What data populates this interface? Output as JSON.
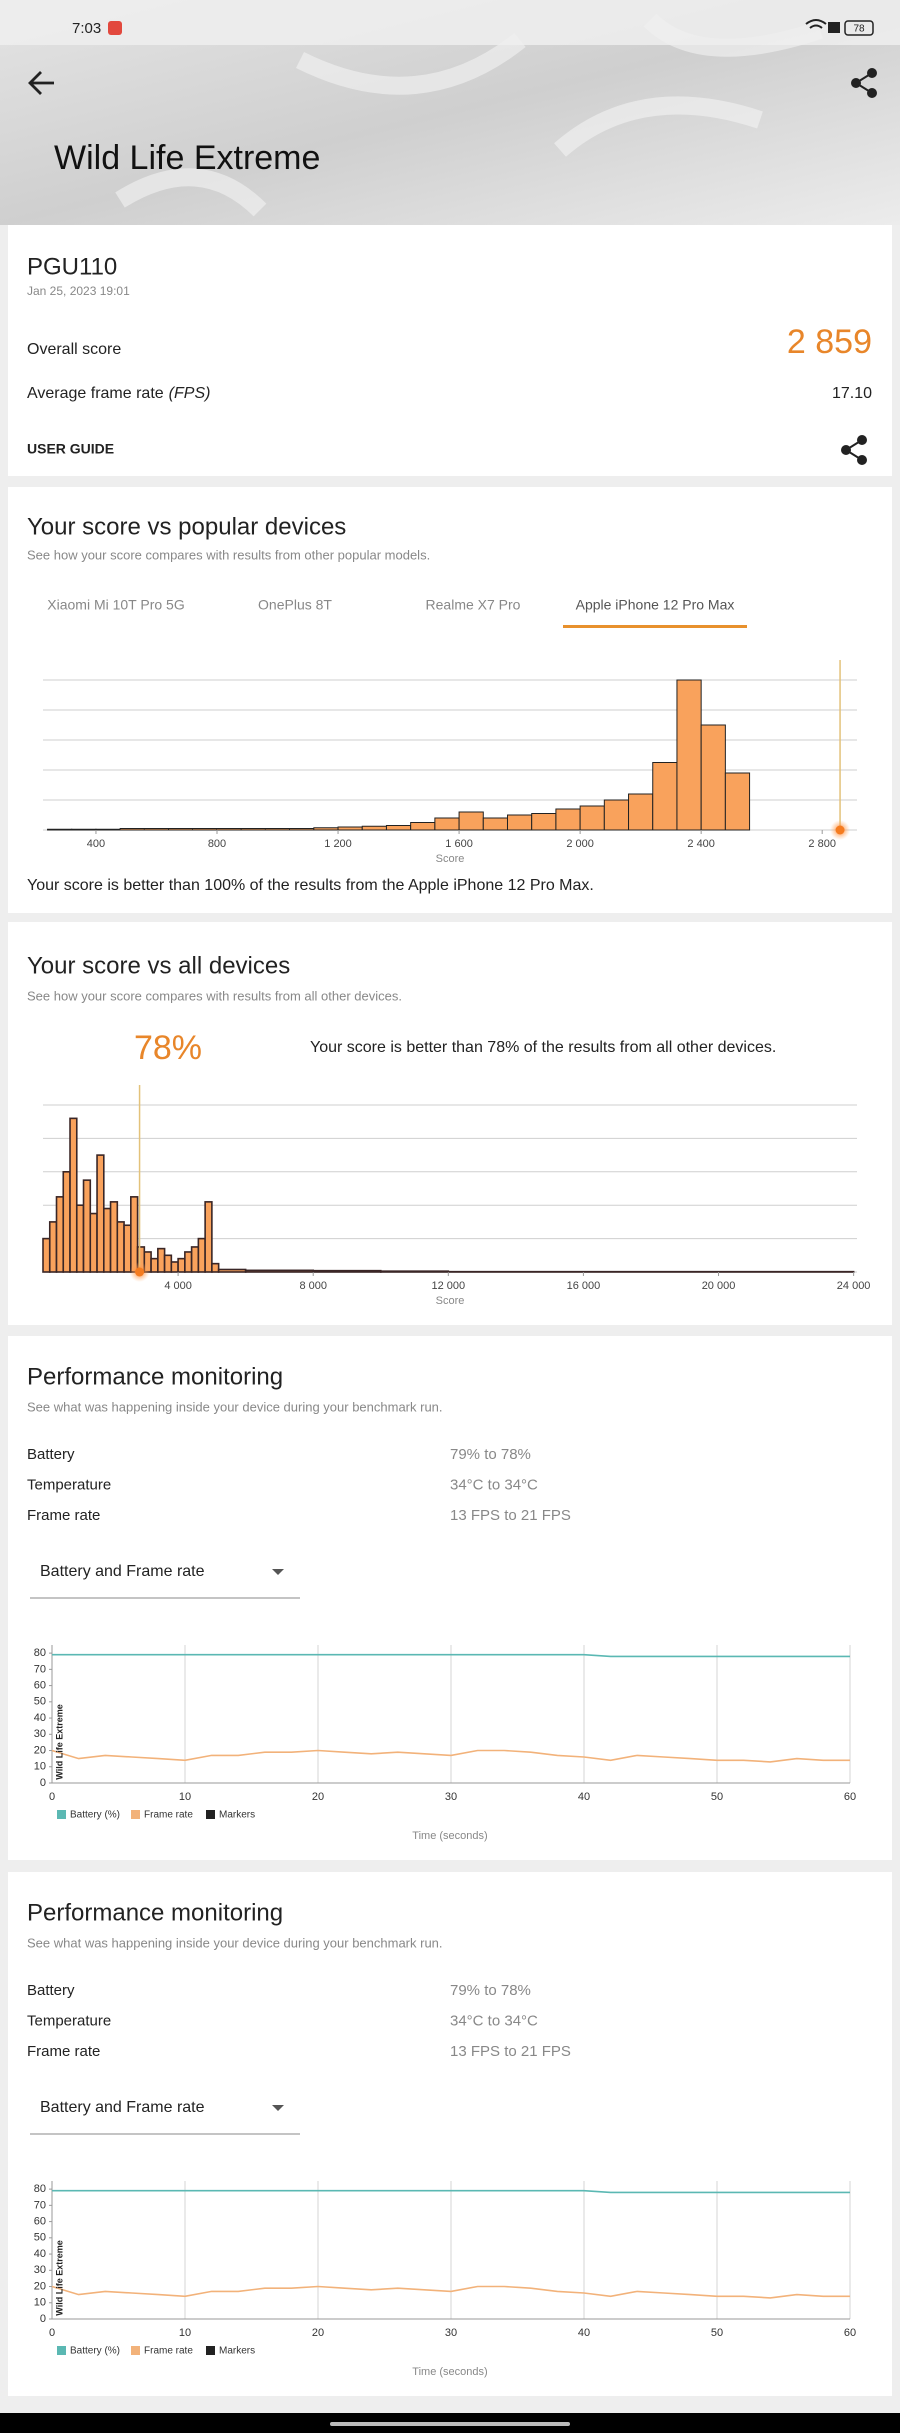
{
  "status_bar": {
    "time": "7:03",
    "battery": "78"
  },
  "header": {
    "title": "Wild Life Extreme"
  },
  "result": {
    "device": "PGU110",
    "date": "Jan 25, 2023 19:01",
    "overall_label": "Overall score",
    "overall_value": "2 859",
    "fps_label": "Average frame rate",
    "fps_unit": "(FPS)",
    "fps_value": "17.10",
    "user_guide": "USER GUIDE"
  },
  "popular": {
    "title": "Your score vs popular devices",
    "subtitle": "See how your score compares with results from other popular models.",
    "tabs": [
      "Xiaomi Mi 10T Pro 5G",
      "OnePlus 8T",
      "Realme X7 Pro",
      "Apple iPhone 12 Pro Max"
    ],
    "active_tab": 3,
    "chart": {
      "type": "histogram",
      "x_label": "Score",
      "xlim": [
        225,
        2915
      ],
      "xticks": [
        400,
        800,
        {
          "value": 1200,
          "label": "1 200"
        },
        {
          "value": 1600,
          "label": "1 600"
        },
        {
          "value": 2000,
          "label": "2 000"
        },
        {
          "value": 2400,
          "label": "2 400"
        },
        {
          "value": 2800,
          "label": "2 800"
        }
      ],
      "ylim": [
        0,
        100
      ],
      "bins": [
        240,
        320,
        400,
        480,
        560,
        640,
        720,
        800,
        880,
        960,
        1040,
        1120,
        1200,
        1280,
        1360,
        1440,
        1520,
        1600,
        1680,
        1760,
        1840,
        1920,
        2000,
        2080,
        2160,
        2240,
        2320,
        2400,
        2480,
        2560
      ],
      "counts": [
        0.5,
        0.5,
        0.5,
        1,
        1,
        1,
        1,
        1,
        1,
        1,
        1,
        1.5,
        2,
        2.5,
        3,
        5,
        8,
        12,
        8,
        10,
        11,
        14,
        16,
        20,
        24,
        45,
        100,
        70,
        38
      ],
      "color": "#f9a25c",
      "marker": 2859
    },
    "summary": "Your score is better than 100% of the results from the Apple iPhone 12 Pro Max."
  },
  "all": {
    "title": "Your score vs all devices",
    "subtitle": "See how your score compares with results from all other devices.",
    "percentile": "78%",
    "summary": "Your score is better than 78% of the results from all other devices.",
    "chart": {
      "type": "histogram",
      "x_label": "Score",
      "xlim": [
        0,
        24100
      ],
      "xticks": [
        {
          "value": 4000,
          "label": "4 000"
        },
        {
          "value": 8000,
          "label": "8 000"
        },
        {
          "value": 12000,
          "label": "12 000"
        },
        {
          "value": 16000,
          "label": "16 000"
        },
        {
          "value": 20000,
          "label": "20 000"
        },
        {
          "value": 24000,
          "label": "24 000"
        }
      ],
      "ylim": [
        0,
        100
      ],
      "bins": [
        0,
        200,
        400,
        600,
        800,
        1000,
        1200,
        1400,
        1600,
        1800,
        2000,
        2200,
        2400,
        2600,
        2800,
        3000,
        3200,
        3400,
        3600,
        3800,
        4000,
        4200,
        4400,
        4600,
        4800,
        5000,
        5200,
        6000,
        8000,
        10000,
        12000,
        24000
      ],
      "counts": [
        20,
        30,
        45,
        60,
        92,
        40,
        55,
        35,
        70,
        38,
        42,
        30,
        28,
        45,
        15,
        12,
        8,
        14,
        10,
        6,
        8,
        12,
        15,
        20,
        42,
        5,
        1.5,
        1,
        0.8,
        0.5,
        0.2
      ],
      "color": "#f9a25c",
      "marker": 2859
    }
  },
  "performance": [
    {
      "title": "Performance monitoring",
      "subtitle": "See what was happening inside your device during your benchmark run.",
      "rows": [
        [
          "Battery",
          "79% to 78%"
        ],
        [
          "Temperature",
          "34°C to 34°C"
        ],
        [
          "Frame rate",
          "13 FPS to 21 FPS"
        ]
      ],
      "dropdown": "Battery and Frame rate",
      "chart": {
        "type": "line",
        "y_label": "Wild Life Extreme",
        "x_label": "Time (seconds)",
        "xlim": [
          0,
          60
        ],
        "xticks": [
          0,
          10,
          20,
          30,
          40,
          50,
          60
        ],
        "ylim": [
          0,
          85
        ],
        "yticks": [
          0,
          10,
          20,
          30,
          40,
          50,
          60,
          70,
          80
        ],
        "x": [
          0,
          2,
          4,
          6,
          8,
          10,
          12,
          14,
          16,
          18,
          20,
          22,
          24,
          26,
          28,
          30,
          32,
          34,
          36,
          38,
          40,
          42,
          44,
          46,
          48,
          50,
          52,
          54,
          56,
          58,
          60
        ],
        "series": [
          {
            "name": "Battery (%)",
            "color": "#5bb8b3",
            "values": [
              79,
              79,
              79,
              79,
              79,
              79,
              79,
              79,
              79,
              79,
              79,
              79,
              79,
              79,
              79,
              79,
              79,
              79,
              79,
              79,
              79,
              78,
              78,
              78,
              78,
              78,
              78,
              78,
              78,
              78,
              78
            ]
          },
          {
            "name": "Frame rate",
            "color": "#f2b27a",
            "values": [
              20,
              15,
              17,
              16,
              15,
              14,
              17,
              17,
              19,
              19,
              20,
              19,
              18,
              19,
              18,
              17,
              20,
              20,
              19,
              17,
              16,
              14,
              17,
              16,
              15,
              14,
              14,
              13,
              15,
              14,
              14
            ]
          },
          {
            "name": "Markers",
            "color": "#222222",
            "values": [
              null,
              null,
              null,
              null,
              null,
              null,
              null,
              null,
              null,
              null,
              null,
              null,
              null,
              null,
              null,
              null,
              null,
              null,
              null,
              null,
              null,
              null,
              null,
              null,
              null,
              null,
              null,
              null,
              null,
              null,
              null
            ]
          }
        ]
      }
    },
    {
      "title": "Performance monitoring",
      "subtitle": "See what was happening inside your device during your benchmark run.",
      "rows": [
        [
          "Battery",
          "79% to 78%"
        ],
        [
          "Temperature",
          "34°C to 34°C"
        ],
        [
          "Frame rate",
          "13 FPS to 21 FPS"
        ]
      ],
      "dropdown": "Battery and Frame rate",
      "chart": {
        "type": "line",
        "y_label": "Wild Life Extreme",
        "x_label": "Time (seconds)",
        "xlim": [
          0,
          60
        ],
        "xticks": [
          0,
          10,
          20,
          30,
          40,
          50,
          60
        ],
        "ylim": [
          0,
          85
        ],
        "yticks": [
          0,
          10,
          20,
          30,
          40,
          50,
          60,
          70,
          80
        ],
        "x": [
          0,
          2,
          4,
          6,
          8,
          10,
          12,
          14,
          16,
          18,
          20,
          22,
          24,
          26,
          28,
          30,
          32,
          34,
          36,
          38,
          40,
          42,
          44,
          46,
          48,
          50,
          52,
          54,
          56,
          58,
          60
        ],
        "series": [
          {
            "name": "Battery (%)",
            "color": "#5bb8b3",
            "values": [
              79,
              79,
              79,
              79,
              79,
              79,
              79,
              79,
              79,
              79,
              79,
              79,
              79,
              79,
              79,
              79,
              79,
              79,
              79,
              79,
              79,
              78,
              78,
              78,
              78,
              78,
              78,
              78,
              78,
              78,
              78
            ]
          },
          {
            "name": "Frame rate",
            "color": "#f2b27a",
            "values": [
              20,
              15,
              17,
              16,
              15,
              14,
              17,
              17,
              19,
              19,
              20,
              19,
              18,
              19,
              18,
              17,
              20,
              20,
              19,
              17,
              16,
              14,
              17,
              16,
              15,
              14,
              14,
              13,
              15,
              14,
              14
            ]
          },
          {
            "name": "Markers",
            "color": "#222222",
            "values": [
              null,
              null,
              null,
              null,
              null,
              null,
              null,
              null,
              null,
              null,
              null,
              null,
              null,
              null,
              null,
              null,
              null,
              null,
              null,
              null,
              null,
              null,
              null,
              null,
              null,
              null,
              null,
              null,
              null,
              null,
              null
            ]
          }
        ]
      }
    }
  ]
}
